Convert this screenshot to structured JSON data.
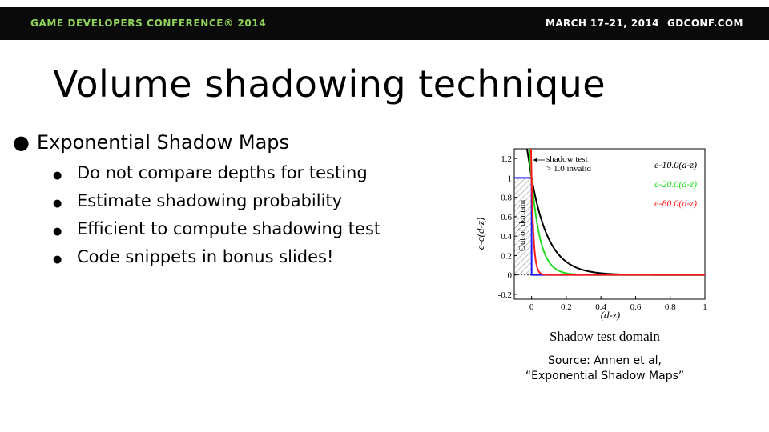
{
  "header": {
    "conference": "GAME DEVELOPERS CONFERENCE® 2014",
    "dates": "MARCH 17–21, 2014",
    "site": "GDCONF.COM",
    "accent_color": "#8fd35a"
  },
  "slide": {
    "title": "Volume shadowing technique",
    "bullet": "Exponential Shadow Maps",
    "sub_bullets": [
      "Do not compare depths for testing",
      "Estimate shadowing probability",
      "Efficient to compute shadowing test",
      "Code snippets in bonus slides!"
    ]
  },
  "figure": {
    "caption_line1": "Source: Annen et al,",
    "caption_line2": "“Exponential Shadow Maps”"
  },
  "chart_data": {
    "type": "line",
    "title": "",
    "xlabel": "(d-z)",
    "ylabel": "e-c(d-z)",
    "domain_label": "Shadow test domain",
    "xlim": [
      -0.1,
      1
    ],
    "ylim": [
      -0.25,
      1.3
    ],
    "xticks": [
      "0",
      "0.2",
      "0.4",
      "0.6",
      "0.8",
      "1"
    ],
    "yticks": [
      "-0.2",
      "0",
      "0.2",
      "0.4",
      "0.6",
      "0.8",
      "1",
      "1.2"
    ],
    "series": [
      {
        "name": "e-10.0(d-z)",
        "c": 10.0,
        "color": "#000000"
      },
      {
        "name": "e-20.0(d-z)",
        "c": 20.0,
        "color": "#22dd22"
      },
      {
        "name": "e-80.0(d-z)",
        "c": 80.0,
        "color": "#ff1a1a"
      }
    ],
    "annotations": {
      "shadow_test_line1": "shadow test",
      "shadow_test_line2": "> 1.0 invalid",
      "out_of_domain": "Out of domain"
    },
    "step_color": "#1a1aff"
  }
}
